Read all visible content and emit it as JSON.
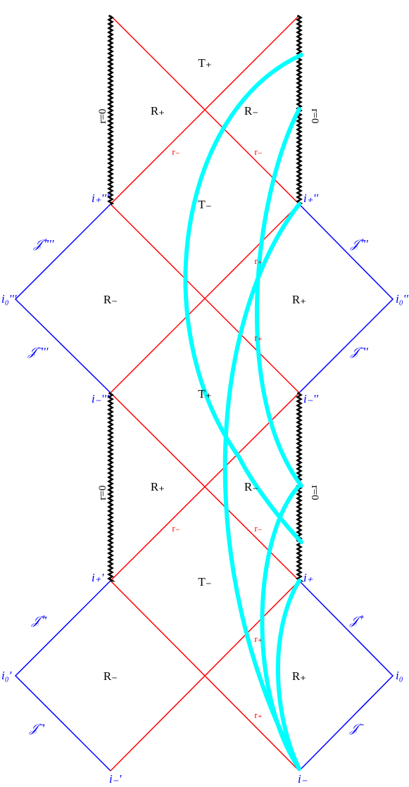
{
  "colors": {
    "horizon": "#ff0000",
    "scri": "#0000ff",
    "singularity": "#000000",
    "trajectory": "#00ffff",
    "background": "#ffffff"
  },
  "singularity_labels": {
    "upper": "r=0",
    "lower": "r=0",
    "upper_right": "r=0",
    "lower_right": "r=0"
  },
  "region_labels": {
    "T_plus_top": "T₊",
    "R_plus_upper_left": "R₊",
    "R_minus_upper_right": "R₋",
    "T_minus_upper": "T₋",
    "R_minus_upper_left_ext": "R₋",
    "R_plus_upper_right_ext": "R₊",
    "T_plus_mid": "T₊",
    "R_plus_lower_left": "R₊",
    "R_minus_lower_right": "R₋",
    "T_minus_lower": "T₋",
    "R_minus_lower_left_ext": "R₋",
    "R_plus_lower_right_ext": "R₊"
  },
  "horizon_labels": {
    "r_minus_1": "r₋",
    "r_minus_2": "r₋",
    "r_plus_1": "r₊",
    "r_plus_2": "r₊",
    "r_minus_3": "r₋",
    "r_minus_4": "r₋",
    "r_plus_3": "r₊",
    "r_plus_4": "r₊"
  },
  "point_labels": {
    "i_plus_tripleprime": "i₊'''",
    "i_plus_doubleprime": "i₊''",
    "i0_tripleprime": "i₀'''",
    "i0_doubleprime": "i₀''",
    "i_minus_tripleprime": "i₋'''",
    "i_minus_doubleprime": "i₋''",
    "i_plus_prime": "i₊'",
    "i_plus": "i₊",
    "i0_prime": "i₀'",
    "i0": "i₀",
    "i_minus_prime": "i₋'",
    "i_minus": "i₋"
  },
  "scri_labels": {
    "J_plus_tripleprime": "𝒥⁺'''",
    "J_plus_doubleprime": "𝒥⁺''",
    "J_minus_tripleprime": "𝒥⁻'''",
    "J_minus_doubleprime": "𝒥⁻''",
    "J_plus_prime": "𝒥⁺'",
    "J_plus": "𝒥⁺",
    "J_minus_prime": "𝒥⁻'",
    "J_minus": "𝒥⁻"
  }
}
